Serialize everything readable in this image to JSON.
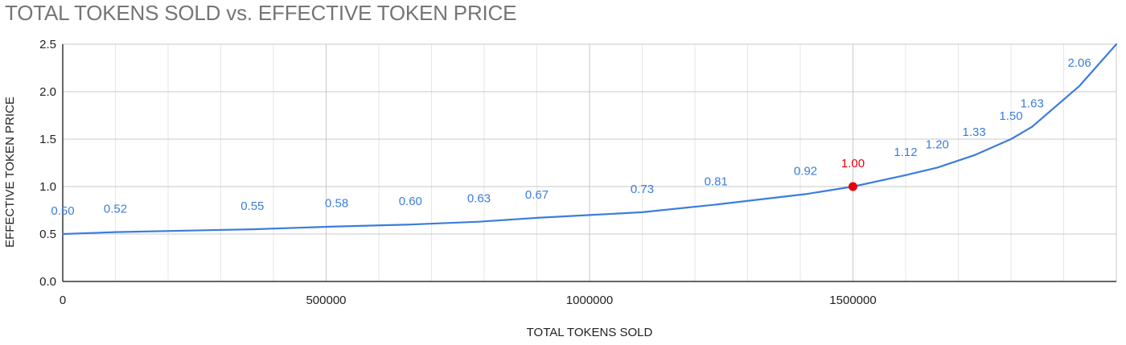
{
  "chart_data": {
    "type": "line",
    "title": "TOTAL TOKENS SOLD vs. EFFECTIVE TOKEN PRICE",
    "xlabel": "TOTAL TOKENS SOLD",
    "ylabel": "EFFECTIVE TOKEN PRICE",
    "xlim": [
      0,
      2000000
    ],
    "ylim": [
      0,
      2.5
    ],
    "x_ticks": [
      "0",
      "500000",
      "1000000",
      "1500000"
    ],
    "y_ticks": [
      "0.0",
      "0.5",
      "1.0",
      "1.5",
      "2.0",
      "2.5"
    ],
    "grid": true,
    "series": [
      {
        "color": "#3b7ddd",
        "points": [
          {
            "x": 0,
            "y": 0.5,
            "label": "0.50"
          },
          {
            "x": 100000,
            "y": 0.52,
            "label": "0.52"
          },
          {
            "x": 360000,
            "y": 0.55,
            "label": "0.55"
          },
          {
            "x": 520000,
            "y": 0.58,
            "label": "0.58"
          },
          {
            "x": 660000,
            "y": 0.6,
            "label": "0.60"
          },
          {
            "x": 790000,
            "y": 0.63,
            "label": "0.63"
          },
          {
            "x": 900000,
            "y": 0.67,
            "label": "0.67"
          },
          {
            "x": 1000000,
            "y": 0.7,
            "label": ""
          },
          {
            "x": 1100000,
            "y": 0.73,
            "label": "0.73"
          },
          {
            "x": 1240000,
            "y": 0.81,
            "label": "0.81"
          },
          {
            "x": 1410000,
            "y": 0.92,
            "label": "0.92"
          },
          {
            "x": 1500000,
            "y": 1.0,
            "label": "1.00",
            "highlight": true
          },
          {
            "x": 1600000,
            "y": 1.12,
            "label": "1.12"
          },
          {
            "x": 1660000,
            "y": 1.2,
            "label": "1.20"
          },
          {
            "x": 1730000,
            "y": 1.33,
            "label": "1.33"
          },
          {
            "x": 1800000,
            "y": 1.5,
            "label": "1.50"
          },
          {
            "x": 1840000,
            "y": 1.63,
            "label": "1.63"
          },
          {
            "x": 1930000,
            "y": 2.06,
            "label": "2.06"
          },
          {
            "x": 2000000,
            "y": 2.5,
            "label": ""
          }
        ]
      }
    ],
    "highlight_color": "#e8000b"
  }
}
